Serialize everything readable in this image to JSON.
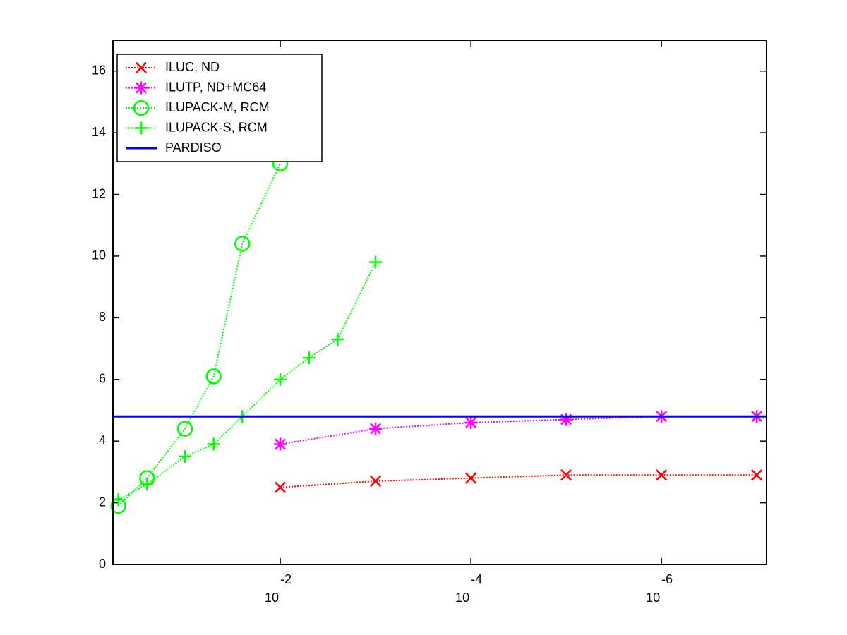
{
  "chart_data": {
    "type": "line",
    "xscale": "log",
    "xlim": [
      0.57,
      7.9e-08
    ],
    "ylim": [
      0,
      17
    ],
    "xticks": [
      {
        "value": 0.01,
        "label": "10",
        "exponent": "-2"
      },
      {
        "value": 0.0001,
        "label": "10",
        "exponent": "-4"
      },
      {
        "value": 1e-06,
        "label": "10",
        "exponent": "-6"
      }
    ],
    "yticks": [
      0,
      2,
      4,
      6,
      8,
      10,
      12,
      14,
      16
    ],
    "legend": "upper left",
    "series": [
      {
        "name": "ILUC,  ND",
        "color": "#ff0000",
        "marker": "x",
        "line": "dotted",
        "x": [
          0.01,
          0.001,
          0.0001,
          1e-05,
          1e-06,
          1e-07
        ],
        "values": [
          2.5,
          2.7,
          2.8,
          2.9,
          2.9,
          2.9
        ]
      },
      {
        "name": "ILUTP,  ND+MC64",
        "color": "#ff00ff",
        "marker": "asterisk",
        "line": "dotted",
        "x": [
          0.01,
          0.001,
          0.0001,
          1e-05,
          1e-06,
          1e-07
        ],
        "values": [
          3.9,
          4.4,
          4.6,
          4.7,
          4.8,
          4.8
        ]
      },
      {
        "name": "ILUPACK-M, RCM",
        "color": "#00ff00",
        "marker": "circle",
        "line": "dotted",
        "x": [
          0.5,
          0.25,
          0.1,
          0.05,
          0.025,
          0.01
        ],
        "values": [
          1.9,
          2.8,
          4.4,
          6.1,
          10.4,
          13.0
        ]
      },
      {
        "name": "ILUPACK-S, RCM",
        "color": "#00ff00",
        "marker": "plus",
        "line": "dotted",
        "x": [
          0.5,
          0.25,
          0.1,
          0.05,
          0.025,
          0.01,
          0.005,
          0.0025,
          0.001
        ],
        "values": [
          2.1,
          2.6,
          3.5,
          3.9,
          4.8,
          6.0,
          6.7,
          7.3,
          9.8
        ]
      },
      {
        "name": "PARDISO",
        "color": "#0000ff",
        "marker": "none",
        "line": "solid",
        "x": [
          0.57,
          7.9e-08
        ],
        "values": [
          4.8,
          4.8
        ]
      }
    ]
  }
}
